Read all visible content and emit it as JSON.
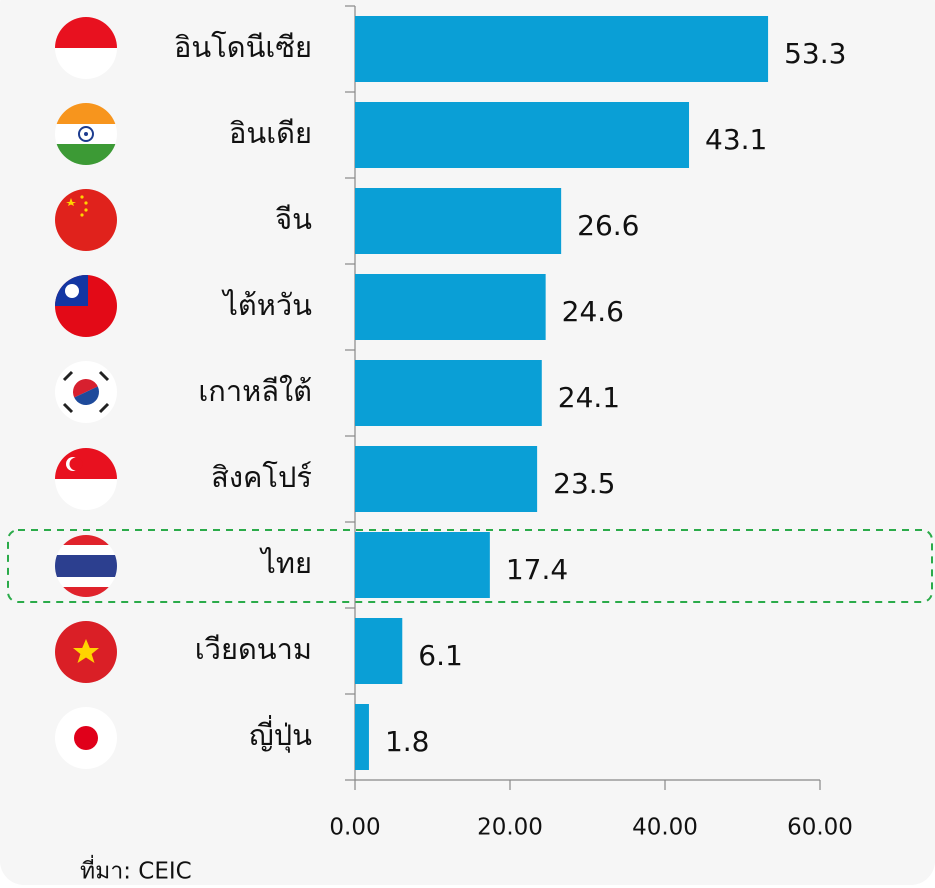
{
  "chart_data": {
    "type": "bar",
    "orientation": "horizontal",
    "categories": [
      "อินโดนีเซีย",
      "อินเดีย",
      "จีน",
      "ไต้หวัน",
      "เกาหลีใต้",
      "สิงคโปร์",
      "ไทย",
      "เวียดนาม",
      "ญี่ปุ่น"
    ],
    "values": [
      53.3,
      43.1,
      26.6,
      24.6,
      24.1,
      23.5,
      17.4,
      6.1,
      1.8
    ],
    "color": "#0a9fd6",
    "xlim": [
      0,
      60
    ],
    "xticks": [
      {
        "value": 0,
        "label": "0.00"
      },
      {
        "value": 20,
        "label": "20.00"
      },
      {
        "value": 40,
        "label": "40.00"
      },
      {
        "value": 60,
        "label": "60.00"
      }
    ],
    "source": "ที่มา: CEIC"
  }
}
